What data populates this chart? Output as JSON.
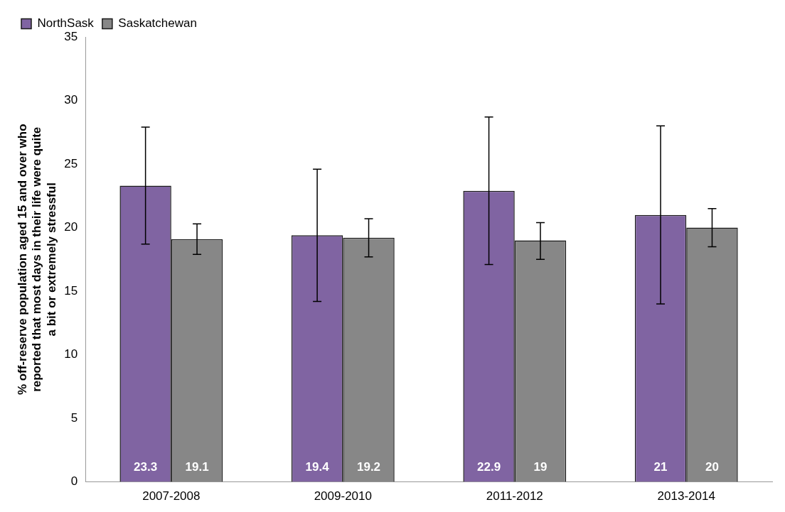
{
  "chart_data": {
    "type": "bar",
    "ylabel": "% off-reserve population aged 15 and over who reported that most days in their life were quite a bit or extremely stressful",
    "categories": [
      "2007-2008",
      "2009-2010",
      "2011-2012",
      "2013-2014"
    ],
    "series": [
      {
        "name": "NorthSask",
        "color": "#8064a2",
        "values": [
          23.3,
          19.4,
          22.9,
          21
        ],
        "errors": [
          [
            18.7,
            27.9
          ],
          [
            14.2,
            24.6
          ],
          [
            17.1,
            28.7
          ],
          [
            14.0,
            28.0
          ]
        ]
      },
      {
        "name": "Saskatchewan",
        "color": "#878787",
        "values": [
          19.1,
          19.2,
          19,
          20
        ],
        "errors": [
          [
            17.9,
            20.3
          ],
          [
            17.7,
            20.7
          ],
          [
            17.5,
            20.4
          ],
          [
            18.5,
            21.5
          ]
        ]
      }
    ],
    "ylim": [
      0,
      35
    ],
    "yticks": [
      0,
      5,
      10,
      15,
      20,
      25,
      30,
      35
    ],
    "grid": false,
    "legend": "top left",
    "data_labels": true
  }
}
